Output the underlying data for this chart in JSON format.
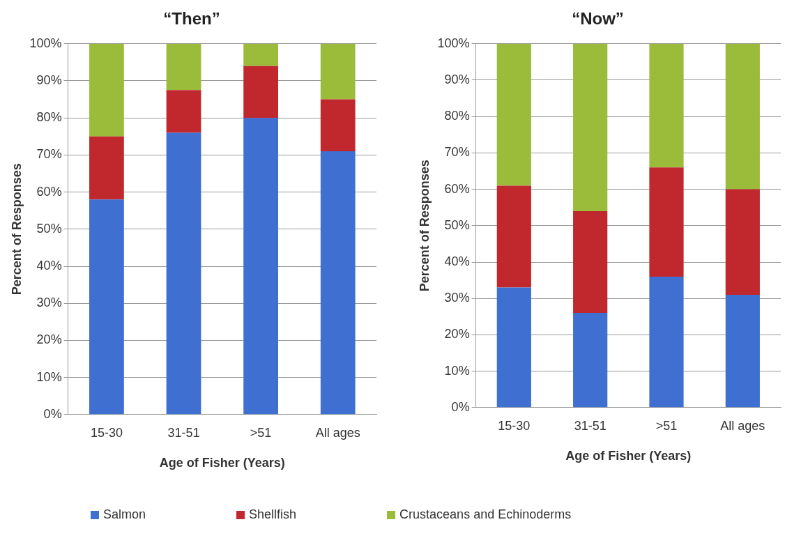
{
  "chart_data": [
    {
      "type": "bar",
      "title": "“Then”",
      "xlabel": "Age of Fisher (Years)",
      "ylabel": "Percent of Responses",
      "categories": [
        "15-30",
        "31-51",
        ">51",
        "All ages"
      ],
      "stacked": true,
      "legend": "bottom",
      "grid": "y",
      "series": [
        {
          "name": "Salmon",
          "color": "#3f6fd0",
          "values": [
            58,
            76,
            80,
            71
          ]
        },
        {
          "name": "Shellfish",
          "color": "#c0282e",
          "values": [
            17,
            11.5,
            14,
            14
          ]
        },
        {
          "name": "Crustaceans and Echinoderms",
          "color": "#9bbb3a",
          "values": [
            25,
            12.5,
            6,
            15
          ]
        }
      ],
      "ylim": [
        0,
        100
      ],
      "yticks": [
        {
          "value": 0,
          "label": "0%"
        },
        {
          "value": 10,
          "label": "10%"
        },
        {
          "value": 20,
          "label": "20%"
        },
        {
          "value": 30,
          "label": "30%"
        },
        {
          "value": 40,
          "label": "40%"
        },
        {
          "value": 50,
          "label": "50%"
        },
        {
          "value": 60,
          "label": "60%"
        },
        {
          "value": 70,
          "label": "70%"
        },
        {
          "value": 80,
          "label": "80%"
        },
        {
          "value": 90,
          "label": "90%"
        },
        {
          "value": 100,
          "label": "100%"
        }
      ]
    },
    {
      "type": "bar",
      "title": "“Now”",
      "xlabel": "Age of Fisher (Years)",
      "ylabel": "Percent of Responses",
      "categories": [
        "15-30",
        "31-51",
        ">51",
        "All ages"
      ],
      "stacked": true,
      "grid": "y",
      "series": [
        {
          "color": "#3f6fd0",
          "values": [
            33,
            26,
            36,
            31
          ]
        },
        {
          "color": "#c0282e",
          "values": [
            28,
            28,
            30,
            29
          ]
        },
        {
          "color": "#9bbb3a",
          "values": [
            39,
            46,
            34,
            40
          ]
        }
      ],
      "ylim": [
        0,
        100
      ],
      "yticks": [
        {
          "value": 0,
          "label": "0%"
        },
        {
          "value": 10,
          "label": "10%"
        },
        {
          "value": 20,
          "label": "20%"
        },
        {
          "value": 30,
          "label": "30%"
        },
        {
          "value": 40,
          "label": "40%"
        },
        {
          "value": 50,
          "label": "50%"
        },
        {
          "value": 60,
          "label": "60%"
        },
        {
          "value": 70,
          "label": "70%"
        },
        {
          "value": 80,
          "label": "80%"
        },
        {
          "value": 90,
          "label": "90%"
        },
        {
          "value": 100,
          "label": "100%"
        }
      ]
    }
  ]
}
